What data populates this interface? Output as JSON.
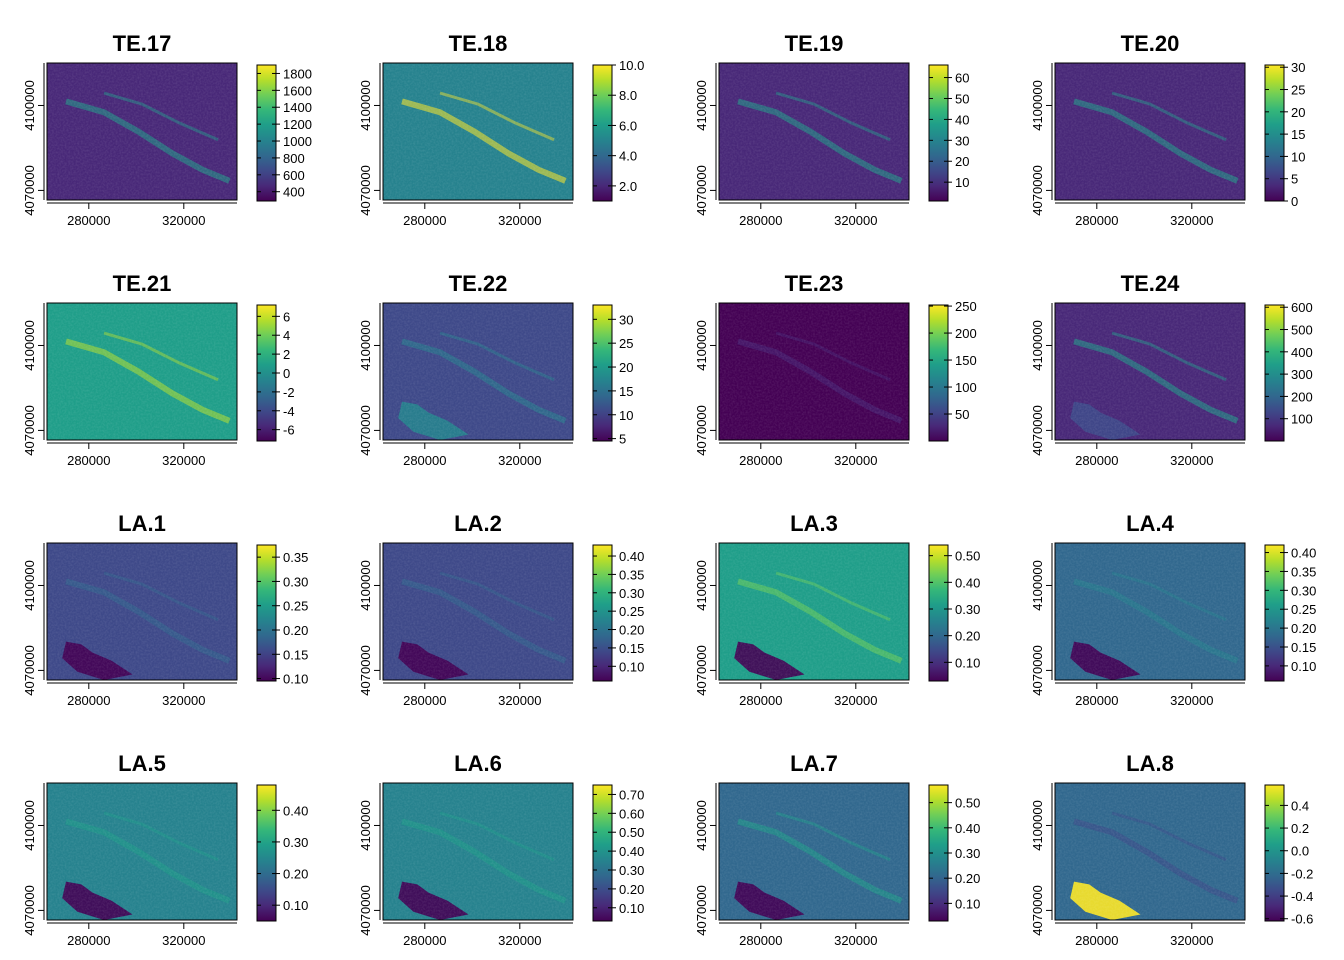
{
  "figure": {
    "palette": "viridis",
    "palette_stops": [
      "#440154",
      "#482878",
      "#3e4989",
      "#31688e",
      "#26828e",
      "#1f9e89",
      "#35b779",
      "#6ece58",
      "#b5de2b",
      "#fde725"
    ]
  },
  "chart_data": [
    {
      "type": "heatmap",
      "title": "TE.17",
      "x_ticks": [
        "280000",
        "320000"
      ],
      "y_ticks": [
        "4070000",
        "4100000"
      ],
      "colorbar": {
        "ticks": [
          "400",
          "600",
          "800",
          "1000",
          "1200",
          "1400",
          "1600",
          "1800"
        ],
        "range": [
          290,
          1900
        ]
      }
    },
    {
      "type": "heatmap",
      "title": "TE.18",
      "x_ticks": [
        "280000",
        "320000"
      ],
      "y_ticks": [
        "4070000",
        "4100000"
      ],
      "colorbar": {
        "ticks": [
          "2.0",
          "4.0",
          "6.0",
          "8.0",
          "10.0"
        ],
        "range": [
          1.0,
          10.0
        ]
      }
    },
    {
      "type": "heatmap",
      "title": "TE.19",
      "x_ticks": [
        "280000",
        "320000"
      ],
      "y_ticks": [
        "4070000",
        "4100000"
      ],
      "colorbar": {
        "ticks": [
          "10",
          "20",
          "30",
          "40",
          "50",
          "60"
        ],
        "range": [
          1,
          66
        ]
      }
    },
    {
      "type": "heatmap",
      "title": "TE.20",
      "x_ticks": [
        "280000",
        "320000"
      ],
      "y_ticks": [
        "4070000",
        "4100000"
      ],
      "colorbar": {
        "ticks": [
          "0",
          "5",
          "10",
          "15",
          "20",
          "25",
          "30"
        ],
        "range": [
          0,
          30.5
        ]
      }
    },
    {
      "type": "heatmap",
      "title": "TE.21",
      "x_ticks": [
        "280000",
        "320000"
      ],
      "y_ticks": [
        "4070000",
        "4100000"
      ],
      "colorbar": {
        "ticks": [
          "-6",
          "-4",
          "-2",
          "0",
          "2",
          "4",
          "6"
        ],
        "range": [
          -7.2,
          7.2
        ]
      }
    },
    {
      "type": "heatmap",
      "title": "TE.22",
      "x_ticks": [
        "280000",
        "320000"
      ],
      "y_ticks": [
        "4070000",
        "4100000"
      ],
      "colorbar": {
        "ticks": [
          "5",
          "10",
          "15",
          "20",
          "25",
          "30"
        ],
        "range": [
          4.5,
          33
        ]
      }
    },
    {
      "type": "heatmap",
      "title": "TE.23",
      "x_ticks": [
        "280000",
        "320000"
      ],
      "y_ticks": [
        "4070000",
        "4100000"
      ],
      "colorbar": {
        "ticks": [
          "50",
          "100",
          "150",
          "200",
          "250"
        ],
        "range": [
          0,
          252
        ]
      }
    },
    {
      "type": "heatmap",
      "title": "TE.24",
      "x_ticks": [
        "280000",
        "320000"
      ],
      "y_ticks": [
        "4070000",
        "4100000"
      ],
      "colorbar": {
        "ticks": [
          "100",
          "200",
          "300",
          "400",
          "500",
          "600"
        ],
        "range": [
          0,
          610
        ]
      }
    },
    {
      "type": "heatmap",
      "title": "LA.1",
      "x_ticks": [
        "280000",
        "320000"
      ],
      "y_ticks": [
        "4070000",
        "4100000"
      ],
      "colorbar": {
        "ticks": [
          "0.10",
          "0.15",
          "0.20",
          "0.25",
          "0.30",
          "0.35"
        ],
        "range": [
          0.095,
          0.375
        ]
      }
    },
    {
      "type": "heatmap",
      "title": "LA.2",
      "x_ticks": [
        "280000",
        "320000"
      ],
      "y_ticks": [
        "4070000",
        "4100000"
      ],
      "colorbar": {
        "ticks": [
          "0.10",
          "0.15",
          "0.20",
          "0.25",
          "0.30",
          "0.35",
          "0.40"
        ],
        "range": [
          0.06,
          0.43
        ]
      }
    },
    {
      "type": "heatmap",
      "title": "LA.3",
      "x_ticks": [
        "280000",
        "320000"
      ],
      "y_ticks": [
        "4070000",
        "4100000"
      ],
      "colorbar": {
        "ticks": [
          "0.10",
          "0.20",
          "0.30",
          "0.40",
          "0.50"
        ],
        "range": [
          0.03,
          0.54
        ]
      }
    },
    {
      "type": "heatmap",
      "title": "LA.4",
      "x_ticks": [
        "280000",
        "320000"
      ],
      "y_ticks": [
        "4070000",
        "4100000"
      ],
      "colorbar": {
        "ticks": [
          "0.10",
          "0.15",
          "0.20",
          "0.25",
          "0.30",
          "0.35",
          "0.40"
        ],
        "range": [
          0.06,
          0.42
        ]
      }
    },
    {
      "type": "heatmap",
      "title": "LA.5",
      "x_ticks": [
        "280000",
        "320000"
      ],
      "y_ticks": [
        "4070000",
        "4100000"
      ],
      "colorbar": {
        "ticks": [
          "0.10",
          "0.20",
          "0.30",
          "0.40"
        ],
        "range": [
          0.05,
          0.48
        ]
      }
    },
    {
      "type": "heatmap",
      "title": "LA.6",
      "x_ticks": [
        "280000",
        "320000"
      ],
      "y_ticks": [
        "4070000",
        "4100000"
      ],
      "colorbar": {
        "ticks": [
          "0.10",
          "0.20",
          "0.30",
          "0.40",
          "0.50",
          "0.60",
          "0.70"
        ],
        "range": [
          0.03,
          0.75
        ]
      }
    },
    {
      "type": "heatmap",
      "title": "LA.7",
      "x_ticks": [
        "280000",
        "320000"
      ],
      "y_ticks": [
        "4070000",
        "4100000"
      ],
      "colorbar": {
        "ticks": [
          "0.10",
          "0.20",
          "0.30",
          "0.40",
          "0.50"
        ],
        "range": [
          0.03,
          0.57
        ]
      }
    },
    {
      "type": "heatmap",
      "title": "LA.8",
      "x_ticks": [
        "280000",
        "320000"
      ],
      "y_ticks": [
        "4070000",
        "4100000"
      ],
      "colorbar": {
        "ticks": [
          "-0.6",
          "-0.4",
          "-0.2",
          "0.0",
          "0.2",
          "0.4"
        ],
        "range": [
          -0.62,
          0.58
        ]
      }
    }
  ]
}
